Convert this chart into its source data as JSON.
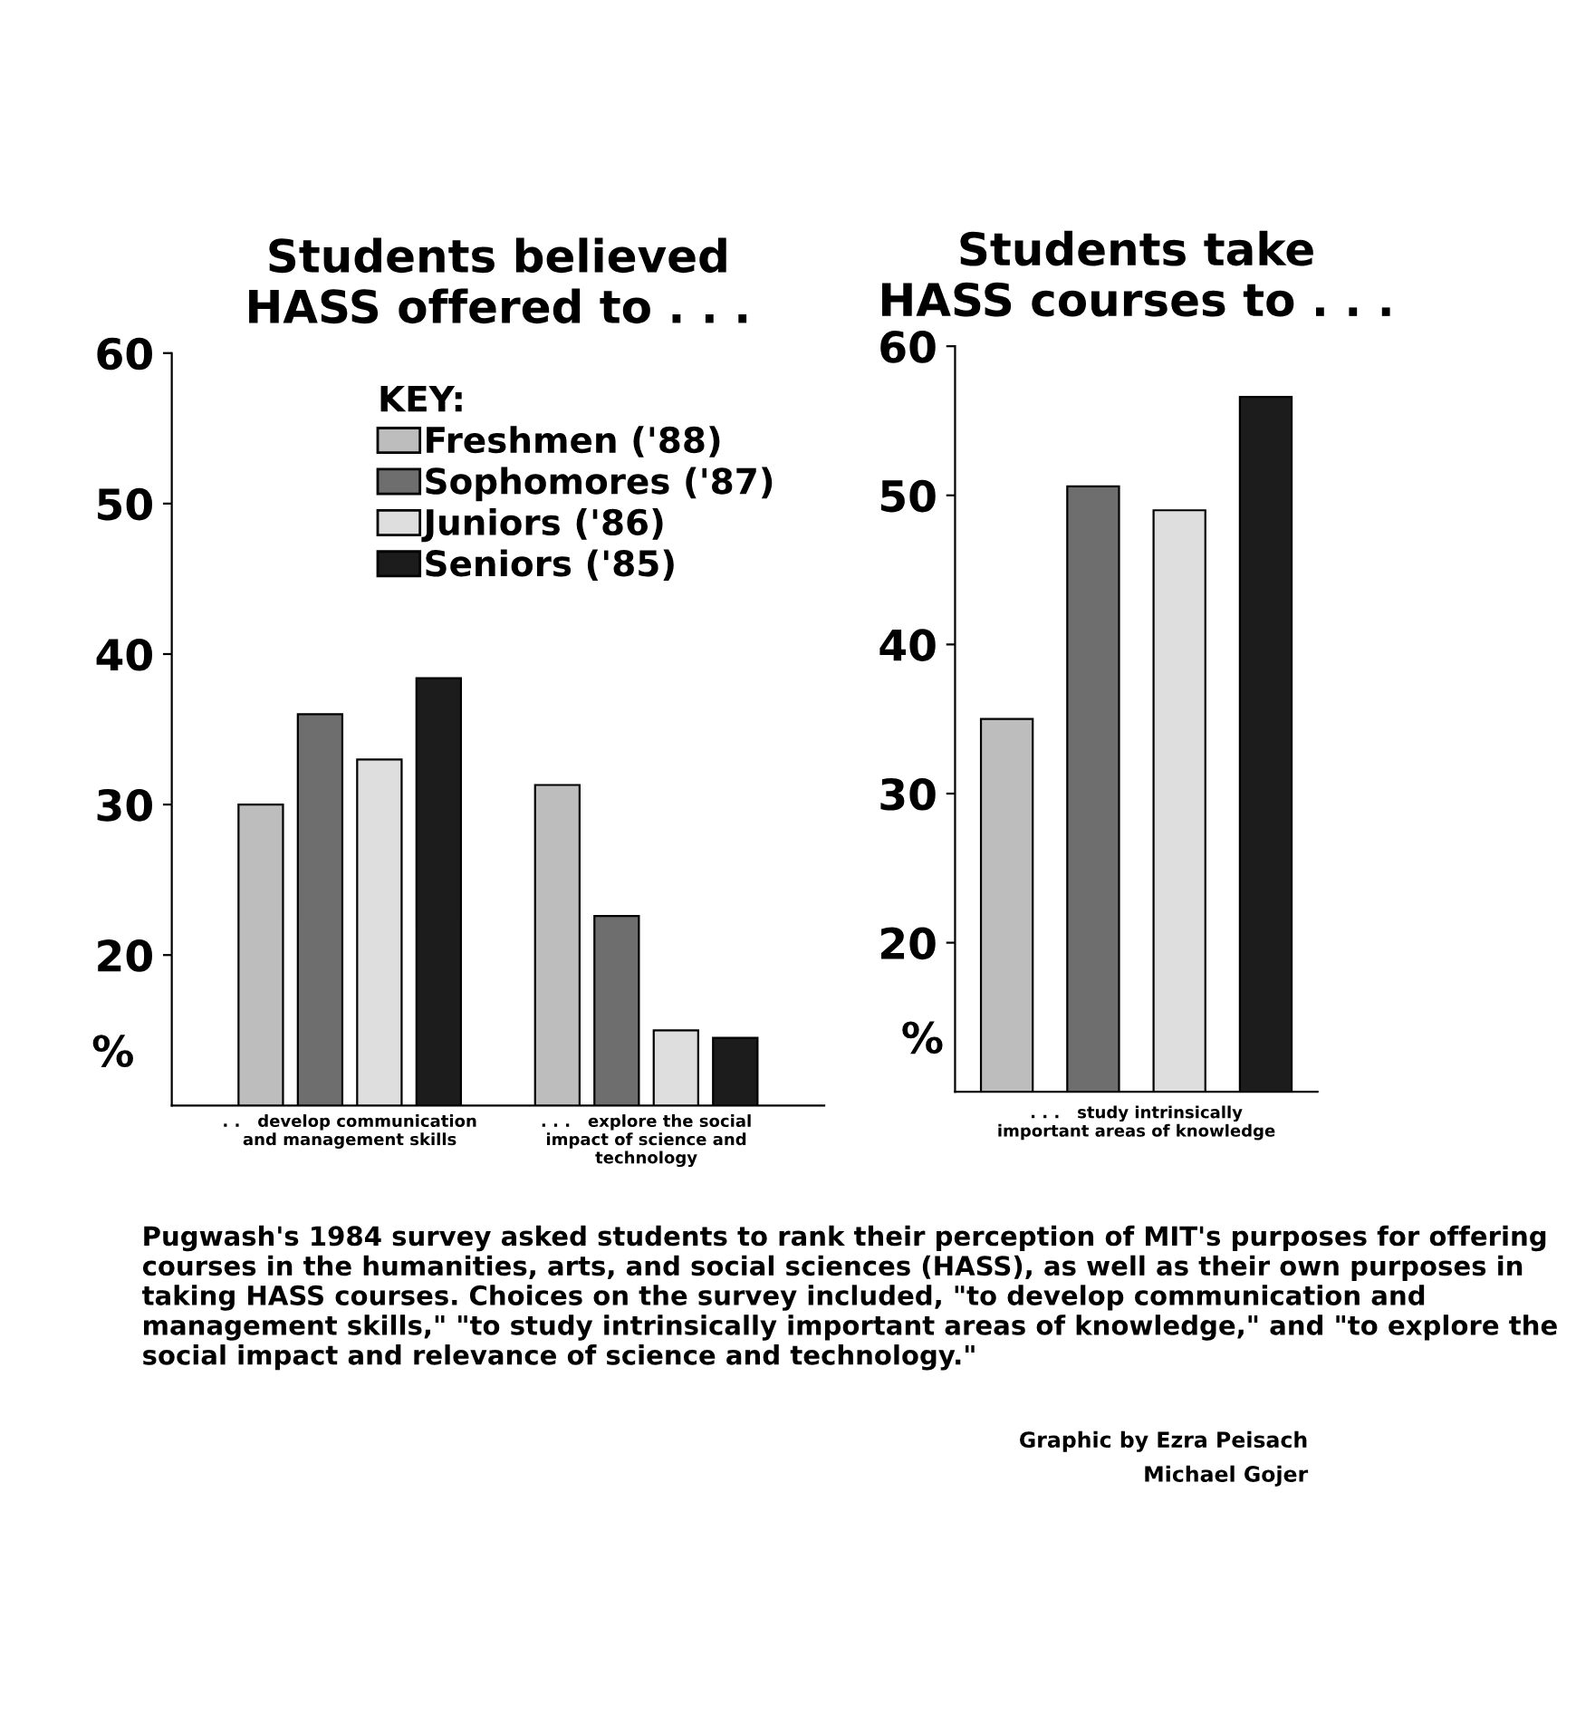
{
  "chart_data": [
    {
      "type": "bar",
      "title": "Students believed\nHASS offered to . . .",
      "ylabel": "%",
      "legend_title": "KEY:",
      "legend": "top",
      "grid": false,
      "categories": [
        ". .   develop communication\nand management skills",
        ". . .   explore the social\nimpact of science and\ntechnology"
      ],
      "ylim": [
        10,
        60
      ],
      "yticks": [
        20,
        30,
        40,
        50,
        60
      ],
      "series": [
        {
          "name": "Freshmen ('88)",
          "color": "#bdbdbd",
          "values": [
            30,
            31.3
          ]
        },
        {
          "name": "Sophomores ('87)",
          "color": "#6e6e6e",
          "values": [
            36,
            22.6
          ]
        },
        {
          "name": "Juniors ('86)",
          "color": "#dedede",
          "values": [
            33,
            15
          ]
        },
        {
          "name": "Seniors ('85)",
          "color": "#1c1c1c",
          "values": [
            38.4,
            14.5
          ]
        }
      ],
      "annotations": [
        "Pugwash's 1984 survey asked students to rank their perception of MIT's purposes for offering courses in the humanities, arts, and social sciences (HASS), as well as their own purposes in taking HASS courses. Choices on the survey included, \"to develop communication and management skills,\" \"to study intrinsically important areas of knowledge,\" and \"to explore the social impact and relevance of science and technology.\"",
        "Graphic by Ezra Peisach",
        "Michael Gojer"
      ]
    },
    {
      "type": "bar",
      "title": "Students take\nHASS courses to . . .",
      "ylabel": "%",
      "grid": false,
      "xlabel": ". . .   study intrinsically\nimportant areas of knowledge",
      "categories": [
        null,
        null,
        null,
        null
      ],
      "ylim": [
        10,
        60
      ],
      "yticks": [
        20,
        30,
        40,
        50,
        60
      ],
      "colors": [
        "#bdbdbd",
        "#6e6e6e",
        "#dedede",
        "#1c1c1c"
      ],
      "values": [
        35,
        50.6,
        49,
        56.6
      ]
    }
  ]
}
